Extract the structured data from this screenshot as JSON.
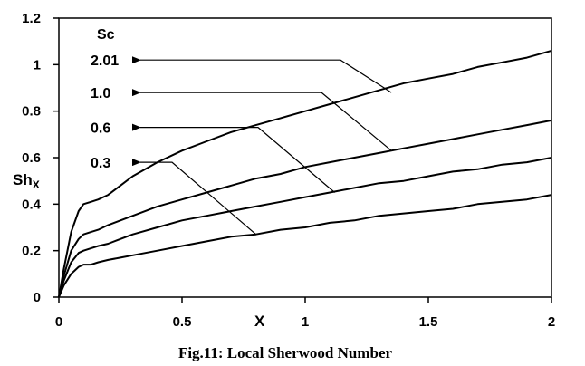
{
  "figure": {
    "caption": "Fig.11: Local Sherwood Number"
  },
  "chart_data": {
    "type": "line",
    "xlabel": "X",
    "ylabel": "Sh",
    "ylabel_subscript": "X",
    "xlim": [
      0,
      2
    ],
    "ylim": [
      0,
      1.2
    ],
    "x_ticks": [
      "0",
      "0.5",
      "1",
      "1.5",
      "2"
    ],
    "y_ticks": [
      "0",
      "0.2",
      "0.4",
      "0.6",
      "0.8",
      "1",
      "1.2"
    ],
    "grid": false,
    "legend_title": "Sc",
    "series": [
      {
        "name": "2.01",
        "x": [
          0,
          0.02,
          0.05,
          0.08,
          0.1,
          0.13,
          0.16,
          0.2,
          0.25,
          0.3,
          0.4,
          0.5,
          0.6,
          0.7,
          0.8,
          0.9,
          1.0,
          1.1,
          1.2,
          1.3,
          1.4,
          1.5,
          1.6,
          1.7,
          1.8,
          1.9,
          2.0
        ],
        "y": [
          0,
          0.12,
          0.28,
          0.37,
          0.4,
          0.41,
          0.42,
          0.44,
          0.48,
          0.52,
          0.58,
          0.63,
          0.67,
          0.71,
          0.74,
          0.77,
          0.8,
          0.83,
          0.86,
          0.89,
          0.92,
          0.94,
          0.96,
          0.99,
          1.01,
          1.03,
          1.06
        ]
      },
      {
        "name": "1.0",
        "x": [
          0,
          0.02,
          0.05,
          0.08,
          0.1,
          0.13,
          0.16,
          0.2,
          0.25,
          0.3,
          0.4,
          0.5,
          0.6,
          0.7,
          0.8,
          0.9,
          1.0,
          1.1,
          1.2,
          1.3,
          1.4,
          1.5,
          1.6,
          1.7,
          1.8,
          1.9,
          2.0
        ],
        "y": [
          0,
          0.09,
          0.2,
          0.25,
          0.27,
          0.28,
          0.29,
          0.31,
          0.33,
          0.35,
          0.39,
          0.42,
          0.45,
          0.48,
          0.51,
          0.53,
          0.56,
          0.58,
          0.6,
          0.62,
          0.64,
          0.66,
          0.68,
          0.7,
          0.72,
          0.74,
          0.76
        ]
      },
      {
        "name": "0.6",
        "x": [
          0,
          0.02,
          0.05,
          0.08,
          0.1,
          0.13,
          0.16,
          0.2,
          0.25,
          0.3,
          0.4,
          0.5,
          0.6,
          0.7,
          0.8,
          0.9,
          1.0,
          1.1,
          1.2,
          1.3,
          1.4,
          1.5,
          1.6,
          1.7,
          1.8,
          1.9,
          2.0
        ],
        "y": [
          0,
          0.07,
          0.15,
          0.19,
          0.2,
          0.21,
          0.22,
          0.23,
          0.25,
          0.27,
          0.3,
          0.33,
          0.35,
          0.37,
          0.39,
          0.41,
          0.43,
          0.45,
          0.47,
          0.49,
          0.5,
          0.52,
          0.54,
          0.55,
          0.57,
          0.58,
          0.6
        ]
      },
      {
        "name": "0.3",
        "x": [
          0,
          0.02,
          0.05,
          0.08,
          0.1,
          0.13,
          0.16,
          0.2,
          0.25,
          0.3,
          0.4,
          0.5,
          0.6,
          0.7,
          0.8,
          0.9,
          1.0,
          1.1,
          1.2,
          1.3,
          1.4,
          1.5,
          1.6,
          1.7,
          1.8,
          1.9,
          2.0
        ],
        "y": [
          0,
          0.05,
          0.1,
          0.13,
          0.14,
          0.14,
          0.15,
          0.16,
          0.17,
          0.18,
          0.2,
          0.22,
          0.24,
          0.26,
          0.27,
          0.29,
          0.3,
          0.32,
          0.33,
          0.35,
          0.36,
          0.37,
          0.38,
          0.4,
          0.41,
          0.42,
          0.44
        ]
      }
    ],
    "annotations": [
      {
        "series": "2.01",
        "label": "2.01",
        "label_y": 1.02,
        "target_x": 1.35,
        "target_y": 0.88
      },
      {
        "series": "1.0",
        "label": "1.0",
        "label_y": 0.88,
        "target_x": 1.35,
        "target_y": 0.63
      },
      {
        "series": "0.6",
        "label": "0.6",
        "label_y": 0.73,
        "target_x": 1.12,
        "target_y": 0.45
      },
      {
        "series": "0.3",
        "label": "0.3",
        "label_y": 0.58,
        "target_x": 0.8,
        "target_y": 0.27
      }
    ]
  }
}
